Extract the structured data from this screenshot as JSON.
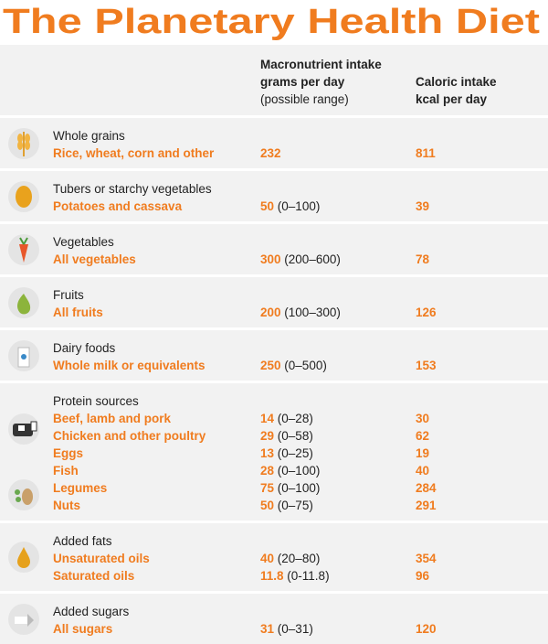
{
  "title": "The Planetary Health Diet",
  "header": {
    "intake": {
      "line1": "Macronutrient intake",
      "line2": "grams per day",
      "line3": "(possible range)"
    },
    "calories": {
      "line1": "Caloric intake",
      "line2": "kcal per day"
    }
  },
  "groups": [
    {
      "name": "Whole grains",
      "items": [
        {
          "label": "Rice, wheat, corn and other",
          "grams": 232,
          "kcal": 811
        }
      ]
    },
    {
      "name": "Tubers or starchy vegetables",
      "items": [
        {
          "label": "Potatoes and cassava",
          "grams": 50,
          "range": "(0–100)",
          "kcal": 39
        }
      ]
    },
    {
      "name": "Vegetables",
      "items": [
        {
          "label": "All vegetables",
          "grams": 300,
          "range": "(200–600)",
          "kcal": 78
        }
      ]
    },
    {
      "name": "Fruits",
      "items": [
        {
          "label": "All fruits",
          "grams": 200,
          "range": "(100–300)",
          "kcal": 126
        }
      ]
    },
    {
      "name": "Dairy foods",
      "items": [
        {
          "label": "Whole milk or equivalents",
          "grams": 250,
          "range": "(0–500)",
          "kcal": 153
        }
      ]
    },
    {
      "name": "Protein sources",
      "items": [
        {
          "label": "Beef, lamb and pork",
          "grams": 14,
          "range": "(0–28)",
          "kcal": 30
        },
        {
          "label": "Chicken and other poultry",
          "grams": 29,
          "range": "(0–58)",
          "kcal": 62
        },
        {
          "label": "Eggs",
          "grams": 13,
          "range": "(0–25)",
          "kcal": 19
        },
        {
          "label": "Fish",
          "grams": 28,
          "range": "(0–100)",
          "kcal": 40
        },
        {
          "label": "Legumes",
          "grams": 75,
          "range": "(0–100)",
          "kcal": 284
        },
        {
          "label": "Nuts",
          "grams": 50,
          "range": "(0–75)",
          "kcal": 291
        }
      ]
    },
    {
      "name": "Added fats",
      "items": [
        {
          "label": "Unsaturated oils",
          "grams": 40,
          "range": "(20–80)",
          "kcal": 354
        },
        {
          "label": "Saturated oils",
          "grams": 11.8,
          "range": "(0-11.8)",
          "kcal": 96
        }
      ]
    },
    {
      "name": "Added sugars",
      "items": [
        {
          "label": "All sugars",
          "grams": 31,
          "range": "(0–31)",
          "kcal": 120
        }
      ]
    }
  ]
}
